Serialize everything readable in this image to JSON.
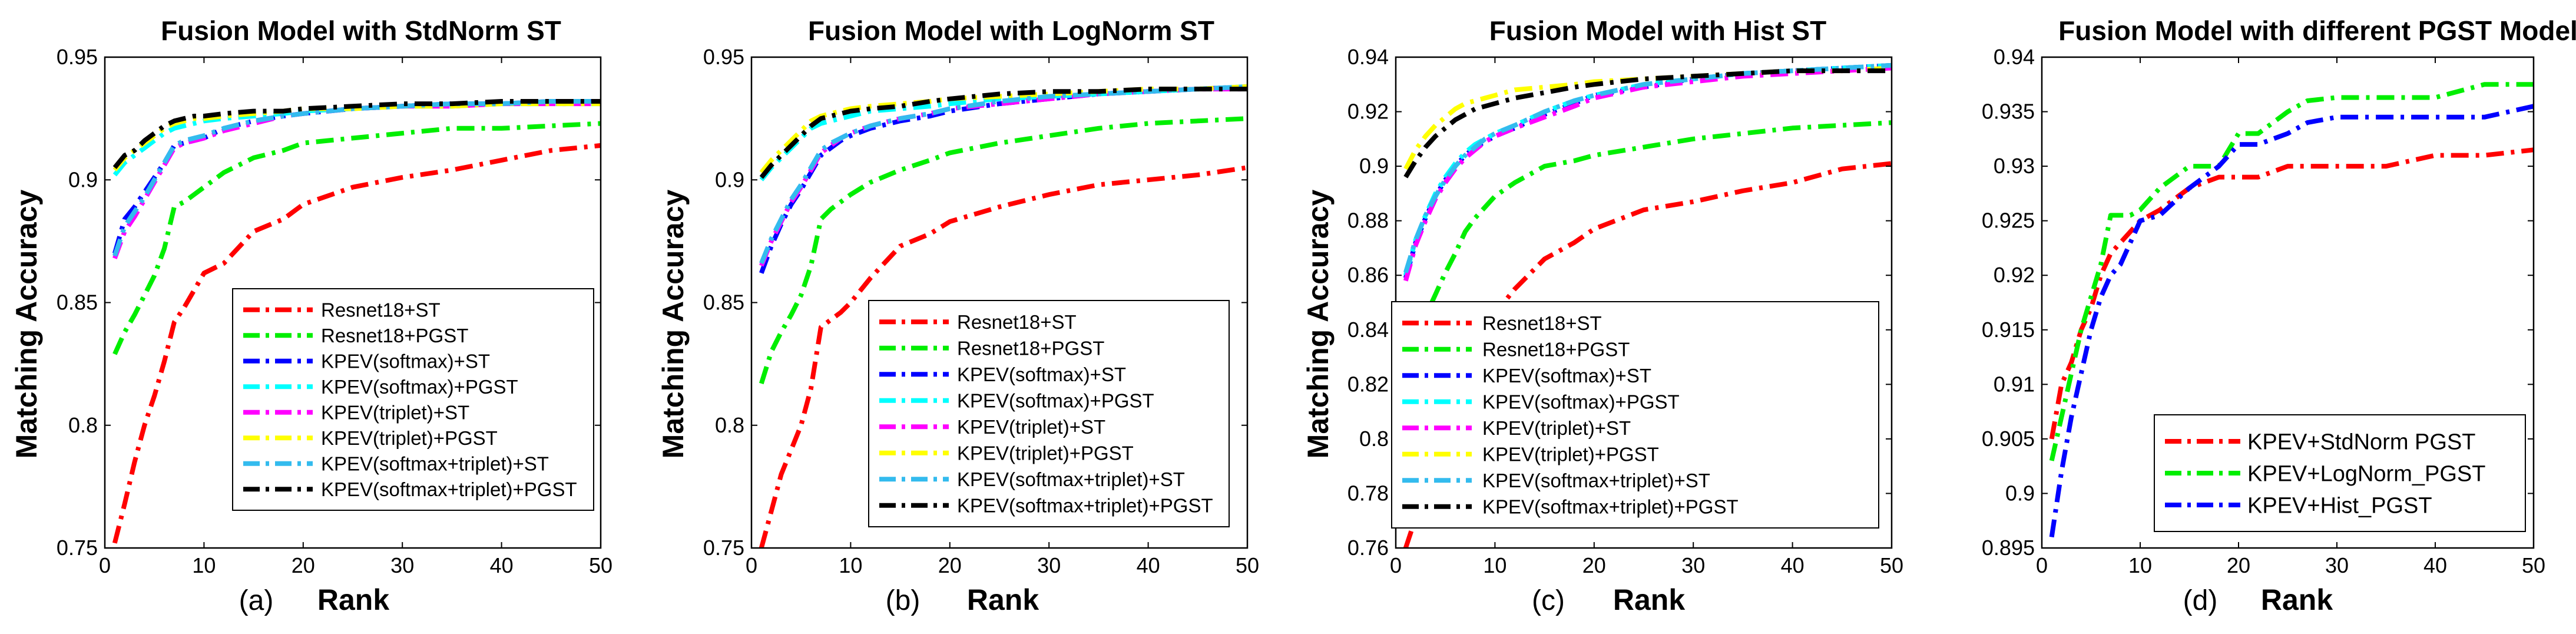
{
  "chart_data": [
    {
      "type": "line",
      "panel_label": "(a)",
      "title": "Fusion Model with StdNorm ST",
      "xlabel": "Rank",
      "ylabel": "Matching Accuracy",
      "xlim": [
        0,
        50
      ],
      "ylim": [
        0.75,
        0.95
      ],
      "xticks": [
        0,
        10,
        20,
        30,
        40,
        50
      ],
      "yticks": [
        0.75,
        0.8,
        0.85,
        0.9,
        0.95
      ],
      "ytick_labels": [
        "0.75",
        "0.8",
        "0.85",
        "0.9",
        "0.95"
      ],
      "legend_position": "bottom-right",
      "x": [
        1,
        2,
        3,
        4,
        5,
        6,
        7,
        8,
        9,
        10,
        12,
        15,
        18,
        20,
        25,
        30,
        35,
        40,
        45,
        50
      ],
      "series": [
        {
          "name": "Resnet18+ST",
          "color": "#ff0000",
          "values": [
            0.752,
            0.768,
            0.785,
            0.8,
            0.812,
            0.826,
            0.842,
            0.848,
            0.855,
            0.862,
            0.866,
            0.879,
            0.884,
            0.89,
            0.897,
            0.901,
            0.904,
            0.908,
            0.912,
            0.914
          ]
        },
        {
          "name": "Resnet18+PGST",
          "color": "#00ee00",
          "values": [
            0.829,
            0.838,
            0.845,
            0.853,
            0.861,
            0.872,
            0.889,
            0.891,
            0.894,
            0.897,
            0.903,
            0.909,
            0.912,
            0.915,
            0.917,
            0.919,
            0.921,
            0.921,
            0.922,
            0.923
          ]
        },
        {
          "name": "KPEV(softmax)+ST",
          "color": "#0000ff",
          "values": [
            0.87,
            0.884,
            0.889,
            0.895,
            0.901,
            0.907,
            0.914,
            0.915,
            0.916,
            0.917,
            0.921,
            0.924,
            0.926,
            0.927,
            0.929,
            0.93,
            0.931,
            0.931,
            0.932,
            0.932
          ]
        },
        {
          "name": "KPEV(softmax)+PGST",
          "color": "#00ffff",
          "values": [
            0.902,
            0.907,
            0.91,
            0.913,
            0.916,
            0.919,
            0.921,
            0.922,
            0.923,
            0.924,
            0.925,
            0.926,
            0.927,
            0.928,
            0.929,
            0.93,
            0.93,
            0.931,
            0.931,
            0.931
          ]
        },
        {
          "name": "KPEV(triplet)+ST",
          "color": "#ff00ff",
          "values": [
            0.868,
            0.879,
            0.885,
            0.892,
            0.899,
            0.906,
            0.913,
            0.915,
            0.916,
            0.917,
            0.92,
            0.923,
            0.926,
            0.927,
            0.929,
            0.93,
            0.93,
            0.931,
            0.931,
            0.931
          ]
        },
        {
          "name": "KPEV(triplet)+PGST",
          "color": "#ffff00",
          "values": [
            0.904,
            0.909,
            0.912,
            0.915,
            0.918,
            0.921,
            0.923,
            0.924,
            0.925,
            0.925,
            0.926,
            0.927,
            0.928,
            0.929,
            0.929,
            0.93,
            0.93,
            0.931,
            0.931,
            0.931
          ]
        },
        {
          "name": "KPEV(softmax+triplet)+ST",
          "color": "#33bbee",
          "values": [
            0.869,
            0.881,
            0.887,
            0.893,
            0.9,
            0.907,
            0.914,
            0.916,
            0.917,
            0.918,
            0.921,
            0.924,
            0.926,
            0.927,
            0.929,
            0.93,
            0.931,
            0.931,
            0.932,
            0.932
          ]
        },
        {
          "name": "KPEV(softmax+triplet)+PGST",
          "color": "#000000",
          "values": [
            0.905,
            0.91,
            0.912,
            0.916,
            0.919,
            0.922,
            0.924,
            0.925,
            0.926,
            0.926,
            0.927,
            0.928,
            0.928,
            0.929,
            0.93,
            0.931,
            0.931,
            0.932,
            0.932,
            0.932
          ]
        }
      ]
    },
    {
      "type": "line",
      "panel_label": "(b)",
      "title": "Fusion Model with LogNorm ST",
      "xlabel": "Rank",
      "ylabel": "Matching Accuracy",
      "xlim": [
        0,
        50
      ],
      "ylim": [
        0.75,
        0.95
      ],
      "xticks": [
        0,
        10,
        20,
        30,
        40,
        50
      ],
      "yticks": [
        0.75,
        0.8,
        0.85,
        0.9,
        0.95
      ],
      "ytick_labels": [
        "0.75",
        "0.8",
        "0.85",
        "0.9",
        "0.95"
      ],
      "legend_position": "bottom-right",
      "x": [
        1,
        2,
        3,
        4,
        5,
        6,
        7,
        8,
        9,
        10,
        12,
        15,
        18,
        20,
        25,
        30,
        35,
        40,
        45,
        50
      ],
      "series": [
        {
          "name": "Resnet18+ST",
          "color": "#ff0000",
          "values": [
            0.75,
            0.765,
            0.78,
            0.79,
            0.8,
            0.815,
            0.84,
            0.843,
            0.846,
            0.85,
            0.86,
            0.873,
            0.878,
            0.883,
            0.889,
            0.894,
            0.898,
            0.9,
            0.902,
            0.905
          ]
        },
        {
          "name": "Resnet18+PGST",
          "color": "#00ee00",
          "values": [
            0.817,
            0.83,
            0.838,
            0.845,
            0.853,
            0.865,
            0.884,
            0.888,
            0.891,
            0.894,
            0.899,
            0.904,
            0.908,
            0.911,
            0.915,
            0.918,
            0.921,
            0.923,
            0.924,
            0.925
          ]
        },
        {
          "name": "KPEV(softmax)+ST",
          "color": "#0000ff",
          "values": [
            0.862,
            0.873,
            0.882,
            0.89,
            0.896,
            0.903,
            0.91,
            0.913,
            0.916,
            0.918,
            0.921,
            0.924,
            0.926,
            0.928,
            0.931,
            0.933,
            0.935,
            0.936,
            0.937,
            0.938
          ]
        },
        {
          "name": "KPEV(softmax)+PGST",
          "color": "#00ffff",
          "values": [
            0.9,
            0.905,
            0.909,
            0.913,
            0.917,
            0.921,
            0.923,
            0.924,
            0.925,
            0.926,
            0.928,
            0.929,
            0.93,
            0.931,
            0.933,
            0.934,
            0.935,
            0.936,
            0.937,
            0.938
          ]
        },
        {
          "name": "KPEV(triplet)+ST",
          "color": "#ff00ff",
          "values": [
            0.865,
            0.875,
            0.883,
            0.891,
            0.897,
            0.904,
            0.911,
            0.914,
            0.917,
            0.919,
            0.922,
            0.925,
            0.927,
            0.929,
            0.931,
            0.933,
            0.935,
            0.936,
            0.937,
            0.937
          ]
        },
        {
          "name": "KPEV(triplet)+PGST",
          "color": "#ffff00",
          "values": [
            0.903,
            0.908,
            0.912,
            0.916,
            0.92,
            0.924,
            0.926,
            0.927,
            0.928,
            0.929,
            0.93,
            0.931,
            0.932,
            0.933,
            0.934,
            0.935,
            0.936,
            0.937,
            0.937,
            0.938
          ]
        },
        {
          "name": "KPEV(softmax+triplet)+ST",
          "color": "#33bbee",
          "values": [
            0.866,
            0.876,
            0.884,
            0.892,
            0.898,
            0.905,
            0.912,
            0.915,
            0.917,
            0.919,
            0.922,
            0.925,
            0.927,
            0.929,
            0.932,
            0.934,
            0.935,
            0.936,
            0.937,
            0.938
          ]
        },
        {
          "name": "KPEV(softmax+triplet)+PGST",
          "color": "#000000",
          "values": [
            0.901,
            0.906,
            0.91,
            0.914,
            0.918,
            0.922,
            0.925,
            0.926,
            0.927,
            0.928,
            0.929,
            0.93,
            0.932,
            0.933,
            0.935,
            0.936,
            0.936,
            0.937,
            0.937,
            0.937
          ]
        }
      ]
    },
    {
      "type": "line",
      "panel_label": "(c)",
      "title": "Fusion Model with Hist ST",
      "xlabel": "Rank",
      "ylabel": "Matching Accuracy",
      "xlim": [
        0,
        50
      ],
      "ylim": [
        0.76,
        0.94
      ],
      "xticks": [
        0,
        10,
        20,
        30,
        40,
        50
      ],
      "yticks": [
        0.76,
        0.78,
        0.8,
        0.82,
        0.84,
        0.86,
        0.88,
        0.9,
        0.92,
        0.94
      ],
      "ytick_labels": [
        "0.76",
        "0.78",
        "0.8",
        "0.82",
        "0.84",
        "0.86",
        "0.88",
        "0.9",
        "0.92",
        "0.94"
      ],
      "legend_position": "bottom-right",
      "x": [
        1,
        2,
        3,
        4,
        5,
        6,
        7,
        8,
        9,
        10,
        12,
        15,
        18,
        20,
        25,
        30,
        35,
        40,
        45,
        50
      ],
      "series": [
        {
          "name": "Resnet18+ST",
          "color": "#ff0000",
          "values": [
            0.76,
            0.771,
            0.782,
            0.792,
            0.801,
            0.812,
            0.826,
            0.835,
            0.842,
            0.846,
            0.855,
            0.866,
            0.872,
            0.877,
            0.884,
            0.887,
            0.891,
            0.894,
            0.899,
            0.901
          ]
        },
        {
          "name": "Resnet18+PGST",
          "color": "#00ee00",
          "values": [
            0.826,
            0.836,
            0.845,
            0.853,
            0.861,
            0.868,
            0.876,
            0.881,
            0.885,
            0.889,
            0.894,
            0.9,
            0.902,
            0.904,
            0.907,
            0.91,
            0.912,
            0.914,
            0.915,
            0.916
          ]
        },
        {
          "name": "KPEV(softmax)+ST",
          "color": "#0000ff",
          "values": [
            0.859,
            0.872,
            0.881,
            0.889,
            0.895,
            0.9,
            0.904,
            0.907,
            0.909,
            0.911,
            0.914,
            0.919,
            0.923,
            0.926,
            0.929,
            0.932,
            0.934,
            0.935,
            0.936,
            0.937
          ]
        },
        {
          "name": "KPEV(softmax)+PGST",
          "color": "#00ffff",
          "values": [
            0.86,
            0.873,
            0.882,
            0.89,
            0.896,
            0.901,
            0.905,
            0.908,
            0.91,
            0.912,
            0.915,
            0.92,
            0.924,
            0.926,
            0.93,
            0.932,
            0.934,
            0.935,
            0.936,
            0.937
          ]
        },
        {
          "name": "KPEV(triplet)+ST",
          "color": "#ff00ff",
          "values": [
            0.858,
            0.871,
            0.88,
            0.888,
            0.894,
            0.899,
            0.903,
            0.906,
            0.909,
            0.911,
            0.914,
            0.918,
            0.922,
            0.925,
            0.929,
            0.931,
            0.933,
            0.934,
            0.935,
            0.936
          ]
        },
        {
          "name": "KPEV(triplet)+PGST",
          "color": "#ffff00",
          "values": [
            0.899,
            0.906,
            0.911,
            0.915,
            0.918,
            0.921,
            0.923,
            0.924,
            0.925,
            0.926,
            0.928,
            0.929,
            0.93,
            0.931,
            0.932,
            0.933,
            0.934,
            0.935,
            0.935,
            0.936
          ]
        },
        {
          "name": "KPEV(softmax+triplet)+ST",
          "color": "#33bbee",
          "values": [
            0.861,
            0.873,
            0.882,
            0.889,
            0.895,
            0.9,
            0.904,
            0.907,
            0.91,
            0.912,
            0.915,
            0.92,
            0.924,
            0.926,
            0.93,
            0.932,
            0.934,
            0.935,
            0.936,
            0.937
          ]
        },
        {
          "name": "KPEV(softmax+triplet)+PGST",
          "color": "#000000",
          "values": [
            0.896,
            0.902,
            0.907,
            0.911,
            0.914,
            0.917,
            0.919,
            0.921,
            0.922,
            0.923,
            0.925,
            0.927,
            0.929,
            0.93,
            0.932,
            0.933,
            0.934,
            0.935,
            0.935,
            0.935
          ]
        }
      ]
    },
    {
      "type": "line",
      "panel_label": "(d)",
      "title": "Fusion Model with different PGST Model",
      "xlabel": "Rank",
      "ylabel": "",
      "xlim": [
        0,
        50
      ],
      "ylim": [
        0.895,
        0.94
      ],
      "xticks": [
        0,
        10,
        20,
        30,
        40,
        50
      ],
      "yticks": [
        0.895,
        0.9,
        0.905,
        0.91,
        0.915,
        0.92,
        0.925,
        0.93,
        0.935,
        0.94
      ],
      "ytick_labels": [
        "0.895",
        "0.9",
        "0.905",
        "0.91",
        "0.915",
        "0.92",
        "0.925",
        "0.93",
        "0.935",
        "0.94"
      ],
      "legend_position": "bottom-right",
      "x": [
        1,
        2,
        3,
        4,
        5,
        6,
        7,
        8,
        9,
        10,
        12,
        15,
        18,
        20,
        22,
        25,
        27,
        30,
        35,
        40,
        45,
        50
      ],
      "series": [
        {
          "name": "KPEV+StdNorm PGST",
          "color": "#ff0000",
          "values": [
            0.905,
            0.91,
            0.912,
            0.915,
            0.917,
            0.92,
            0.922,
            0.923,
            0.924,
            0.925,
            0.926,
            0.928,
            0.929,
            0.929,
            0.929,
            0.93,
            0.93,
            0.93,
            0.93,
            0.931,
            0.931,
            0.9315
          ]
        },
        {
          "name": "KPEV+LogNorm_PGST",
          "color": "#00ee00",
          "values": [
            0.903,
            0.907,
            0.911,
            0.915,
            0.918,
            0.921,
            0.9255,
            0.9255,
            0.9255,
            0.926,
            0.928,
            0.93,
            0.93,
            0.933,
            0.933,
            0.935,
            0.936,
            0.9363,
            0.9363,
            0.9363,
            0.9375,
            0.9375
          ]
        },
        {
          "name": "KPEV+Hist_PGST",
          "color": "#0000ff",
          "values": [
            0.896,
            0.902,
            0.907,
            0.911,
            0.915,
            0.918,
            0.92,
            0.921,
            0.923,
            0.925,
            0.9255,
            0.928,
            0.93,
            0.932,
            0.932,
            0.933,
            0.934,
            0.9345,
            0.9345,
            0.9345,
            0.9345,
            0.9355
          ]
        }
      ]
    }
  ]
}
